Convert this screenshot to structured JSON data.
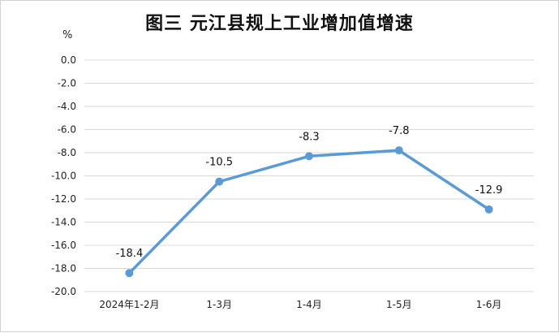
{
  "chart_data": {
    "type": "line",
    "title": "图三  元江县规上工业增加值增速",
    "ylabel": "%",
    "xlabel": "",
    "categories": [
      "2024年1-2月",
      "1-3月",
      "1-4月",
      "1-5月",
      "1-6月"
    ],
    "series": [
      {
        "values": [
          -18.4,
          -10.5,
          -8.3,
          -7.8,
          -12.9
        ]
      }
    ],
    "data_labels": [
      "-18.4",
      "-10.5",
      "-8.3",
      "-7.8",
      "-12.9"
    ],
    "ylim": [
      -20,
      0
    ],
    "yticks": [
      "0.0",
      "-2.0",
      "-4.0",
      "-6.0",
      "-8.0",
      "-10.0",
      "-12.0",
      "-14.0",
      "-16.0",
      "-18.0",
      "-20.0"
    ],
    "grid": true,
    "legend": "none",
    "line_color": "#5b9bd5",
    "grid_color": "#d9d9d9"
  }
}
